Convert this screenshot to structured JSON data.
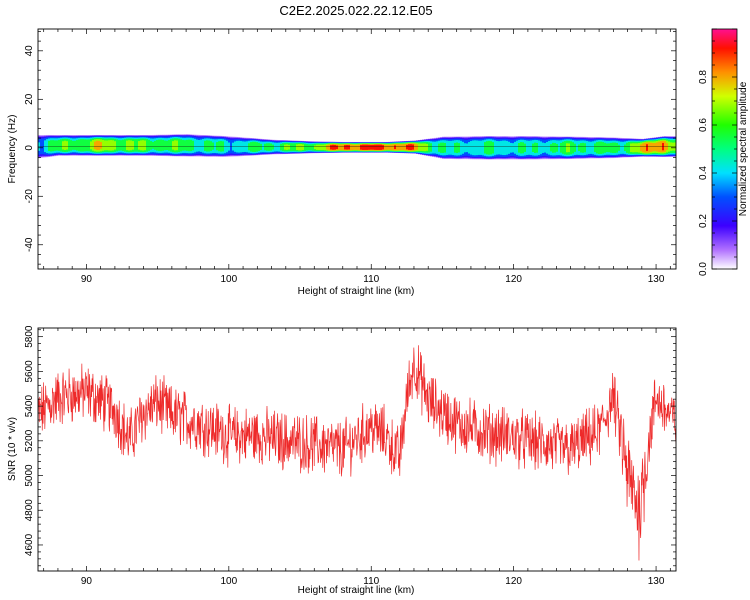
{
  "title": "C2E2.2025.022.22.12.E05",
  "chart_data": [
    {
      "type": "heatmap",
      "name": "spectrogram",
      "xlabel": "Height of straight line (km)",
      "ylabel": "Frequency (Hz)",
      "xlim": [
        86.6,
        131.4
      ],
      "ylim": [
        -50,
        49
      ],
      "x_ticks": [
        90,
        100,
        110,
        120,
        130
      ],
      "y_ticks": [
        -40,
        -20,
        0,
        20,
        40
      ],
      "colorbar": {
        "label": "Normalized spectral amplitude",
        "ticks": [
          0.0,
          0.2,
          0.4,
          0.6,
          0.8
        ],
        "tick_labels": [
          "0.0",
          "0.2",
          "0.4",
          "0.6",
          "0.8"
        ],
        "range": [
          0,
          1
        ]
      },
      "band_profile": [
        {
          "x": 86.6,
          "center": 0.5,
          "halfwidth": 4.0,
          "peak": 0.5
        },
        {
          "x": 88,
          "center": 1.0,
          "halfwidth": 3.5,
          "peak": 0.6
        },
        {
          "x": 91,
          "center": 1.0,
          "halfwidth": 3.5,
          "peak": 0.75
        },
        {
          "x": 94,
          "center": 1.0,
          "halfwidth": 3.5,
          "peak": 0.65
        },
        {
          "x": 97,
          "center": 1.0,
          "halfwidth": 3.8,
          "peak": 0.6
        },
        {
          "x": 100,
          "center": 0.5,
          "halfwidth": 3.5,
          "peak": 0.5
        },
        {
          "x": 103,
          "center": 0.3,
          "halfwidth": 2.5,
          "peak": 0.6
        },
        {
          "x": 106,
          "center": 0.2,
          "halfwidth": 2.0,
          "peak": 0.7
        },
        {
          "x": 108,
          "center": 0.2,
          "halfwidth": 1.8,
          "peak": 0.95
        },
        {
          "x": 111,
          "center": 0.2,
          "halfwidth": 1.8,
          "peak": 0.95
        },
        {
          "x": 113,
          "center": 0.3,
          "halfwidth": 2.2,
          "peak": 0.85
        },
        {
          "x": 115,
          "center": 0.0,
          "halfwidth": 3.8,
          "peak": 0.5
        },
        {
          "x": 118,
          "center": 0.0,
          "halfwidth": 4.0,
          "peak": 0.55
        },
        {
          "x": 121,
          "center": 0.0,
          "halfwidth": 4.0,
          "peak": 0.5
        },
        {
          "x": 124,
          "center": 0.0,
          "halfwidth": 3.8,
          "peak": 0.6
        },
        {
          "x": 127,
          "center": 0.0,
          "halfwidth": 3.5,
          "peak": 0.55
        },
        {
          "x": 129,
          "center": 0.0,
          "halfwidth": 3.0,
          "peak": 0.8
        },
        {
          "x": 130.5,
          "center": 0.5,
          "halfwidth": 3.5,
          "peak": 0.95
        },
        {
          "x": 131.4,
          "center": 0.5,
          "halfwidth": 3.5,
          "peak": 0.6
        }
      ]
    },
    {
      "type": "line",
      "name": "snr",
      "xlabel": "Height of straight line (km)",
      "ylabel": "SNR (10 * v/v)",
      "xlim": [
        86.6,
        131.4
      ],
      "ylim": [
        4450,
        5850
      ],
      "x_ticks": [
        90,
        100,
        110,
        120,
        130
      ],
      "y_ticks": [
        4600,
        4800,
        5000,
        5200,
        5400,
        5600,
        5800
      ],
      "color": "#ee2a2a",
      "trend": [
        {
          "x": 86.6,
          "y": 5350
        },
        {
          "x": 88,
          "y": 5450
        },
        {
          "x": 90,
          "y": 5480
        },
        {
          "x": 92,
          "y": 5380
        },
        {
          "x": 93,
          "y": 5200
        },
        {
          "x": 94,
          "y": 5360
        },
        {
          "x": 95,
          "y": 5420
        },
        {
          "x": 96,
          "y": 5350
        },
        {
          "x": 98,
          "y": 5300
        },
        {
          "x": 100,
          "y": 5230
        },
        {
          "x": 102,
          "y": 5230
        },
        {
          "x": 104,
          "y": 5200
        },
        {
          "x": 106,
          "y": 5180
        },
        {
          "x": 108,
          "y": 5150
        },
        {
          "x": 110,
          "y": 5280
        },
        {
          "x": 111,
          "y": 5230
        },
        {
          "x": 112,
          "y": 5100
        },
        {
          "x": 112.5,
          "y": 5450
        },
        {
          "x": 113,
          "y": 5650
        },
        {
          "x": 114,
          "y": 5430
        },
        {
          "x": 116,
          "y": 5300
        },
        {
          "x": 118,
          "y": 5250
        },
        {
          "x": 120,
          "y": 5220
        },
        {
          "x": 122,
          "y": 5180
        },
        {
          "x": 124,
          "y": 5150
        },
        {
          "x": 126,
          "y": 5250
        },
        {
          "x": 127,
          "y": 5450
        },
        {
          "x": 128,
          "y": 5000
        },
        {
          "x": 128.8,
          "y": 4800
        },
        {
          "x": 129.5,
          "y": 5200
        },
        {
          "x": 130,
          "y": 5450
        },
        {
          "x": 131.4,
          "y": 5300
        }
      ],
      "noise_amplitude": 140,
      "samples": 1500
    }
  ]
}
